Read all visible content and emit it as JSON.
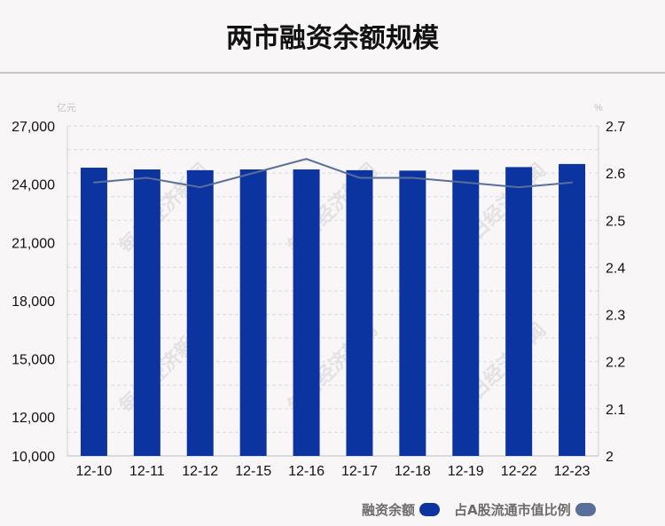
{
  "chart_data": {
    "type": "bar+line",
    "title": "两市融资余额规模",
    "categories": [
      "12-10",
      "12-11",
      "12-12",
      "12-15",
      "12-16",
      "12-17",
      "12-18",
      "12-19",
      "12-22",
      "12-23"
    ],
    "left_axis": {
      "unit": "亿元",
      "ticks": [
        "10,000",
        "12,000",
        "15,000",
        "18,000",
        "21,000",
        "24,000",
        "27,000"
      ],
      "tick_values": [
        10000,
        12000,
        15000,
        18000,
        21000,
        24000,
        27000
      ],
      "range": [
        10000,
        27000
      ]
    },
    "right_axis": {
      "unit": "%",
      "ticks": [
        "2",
        "2.1",
        "2.2",
        "2.3",
        "2.4",
        "2.5",
        "2.6",
        "2.7"
      ],
      "range": [
        2,
        2.7
      ]
    },
    "series": [
      {
        "name": "融资余额",
        "type": "bar",
        "axis": "left",
        "color": "#0c34a0",
        "values": [
          24850,
          24760,
          24720,
          24760,
          24760,
          24720,
          24700,
          24740,
          24880,
          25040
        ]
      },
      {
        "name": "占A股流通市值比例",
        "type": "line",
        "axis": "right",
        "color": "#5a6e9a",
        "values": [
          2.58,
          2.59,
          2.57,
          2.6,
          2.63,
          2.59,
          2.59,
          2.58,
          2.57,
          2.58
        ]
      }
    ],
    "legend": "bottom-right",
    "grid": true,
    "watermark": "每日经济新闻"
  }
}
